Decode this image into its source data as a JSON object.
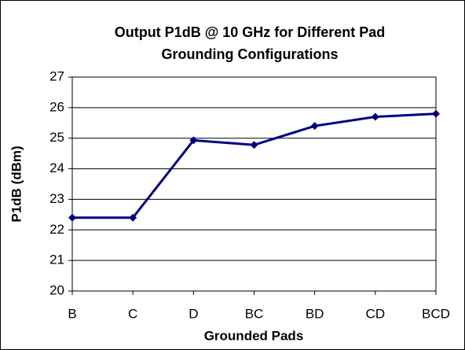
{
  "chart_data": {
    "type": "line",
    "title": [
      "Output P1dB @ 10 GHz for Different Pad",
      "Grounding Configurations"
    ],
    "xlabel": "Grounded Pads",
    "ylabel": "P1dB (dBm)",
    "categories": [
      "B",
      "C",
      "D",
      "BC",
      "BD",
      "CD",
      "BCD"
    ],
    "series": [
      {
        "name": "P1dB",
        "color": "#000080",
        "values": [
          22.4,
          22.4,
          24.93,
          24.78,
          25.4,
          25.7,
          25.8
        ]
      }
    ],
    "ylim": [
      20,
      27
    ],
    "yticks": [
      20,
      21,
      22,
      23,
      24,
      25,
      26,
      27
    ],
    "grid": true
  }
}
